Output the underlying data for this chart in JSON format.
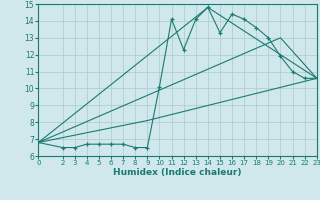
{
  "bg_color": "#d0e8ec",
  "grid_color": "#b0ced4",
  "line_color": "#1a7a6e",
  "xlabel": "Humidex (Indice chaleur)",
  "xlim": [
    0,
    23
  ],
  "ylim": [
    6,
    15
  ],
  "xticks": [
    0,
    2,
    3,
    4,
    5,
    6,
    7,
    8,
    9,
    10,
    11,
    12,
    13,
    14,
    15,
    16,
    17,
    18,
    19,
    20,
    21,
    22,
    23
  ],
  "yticks": [
    6,
    7,
    8,
    9,
    10,
    11,
    12,
    13,
    14,
    15
  ],
  "line1_x": [
    0,
    2,
    3,
    4,
    5,
    6,
    7,
    8,
    9,
    10,
    11,
    12,
    13,
    14,
    15,
    16,
    17,
    18,
    19,
    20,
    21,
    22,
    23
  ],
  "line1_y": [
    6.8,
    6.5,
    6.5,
    6.7,
    6.7,
    6.7,
    6.7,
    6.5,
    6.5,
    10.1,
    14.1,
    12.3,
    14.1,
    14.8,
    13.3,
    14.4,
    14.1,
    13.6,
    13.0,
    11.9,
    11.0,
    10.6,
    10.6
  ],
  "line2_x": [
    0,
    9,
    23
  ],
  "line2_y": [
    6.8,
    8.1,
    10.6
  ],
  "line3_x": [
    0,
    14,
    23
  ],
  "line3_y": [
    6.8,
    14.8,
    10.6
  ],
  "line4_x": [
    0,
    20,
    23
  ],
  "line4_y": [
    6.8,
    13.0,
    10.6
  ]
}
